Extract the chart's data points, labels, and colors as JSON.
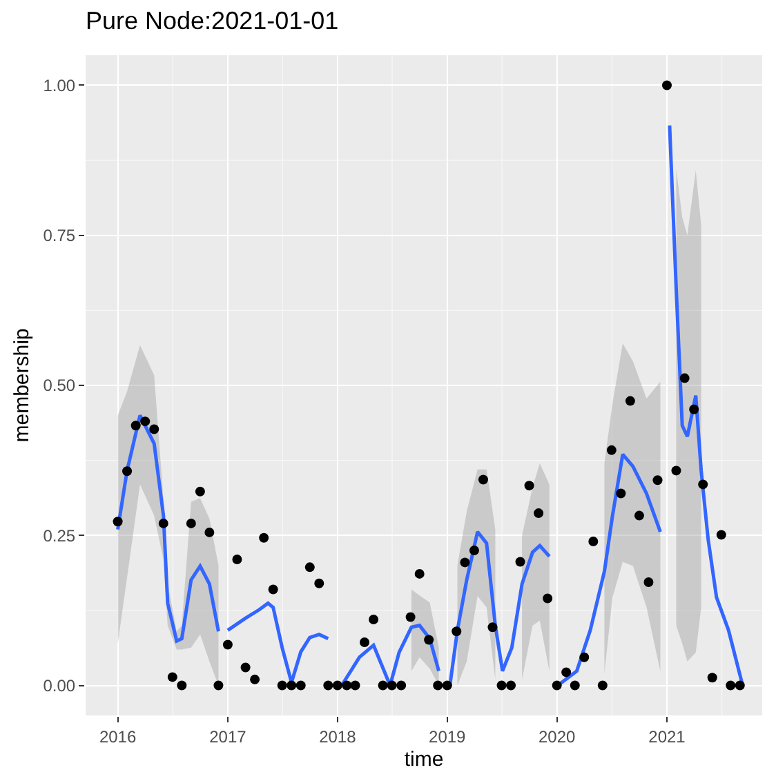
{
  "chart_data": {
    "type": "scatter",
    "title": "Pure Node:2021-01-01",
    "xlabel": "time",
    "ylabel": "membership",
    "xlim": [
      "2015-09-16",
      "2021-11-14"
    ],
    "ylim": [
      -0.05,
      1.05
    ],
    "xticks": [
      {
        "value": "2016-01-01",
        "label": "2016"
      },
      {
        "value": "2017-01-01",
        "label": "2017"
      },
      {
        "value": "2018-01-01",
        "label": "2018"
      },
      {
        "value": "2019-01-01",
        "label": "2019"
      },
      {
        "value": "2020-01-01",
        "label": "2020"
      },
      {
        "value": "2021-01-01",
        "label": "2021"
      }
    ],
    "yticks": [
      {
        "value": 0,
        "label": "0.00"
      },
      {
        "value": 0.25,
        "label": "0.25"
      },
      {
        "value": 0.5,
        "label": "0.50"
      },
      {
        "value": 0.75,
        "label": "0.75"
      },
      {
        "value": 1,
        "label": "1.00"
      }
    ],
    "grid": true,
    "series": [
      {
        "marker": "circle",
        "color": "#000000",
        "x": [
          "2016-01-01",
          "2016-02-01",
          "2016-03-01",
          "2016-04-01",
          "2016-05-01",
          "2016-06-01",
          "2016-07-01",
          "2016-08-01",
          "2016-09-01",
          "2016-10-01",
          "2016-11-01",
          "2016-12-01",
          "2017-01-01",
          "2017-02-01",
          "2017-03-01",
          "2017-04-01",
          "2017-05-01",
          "2017-06-01",
          "2017-07-01",
          "2017-08-01",
          "2017-09-01",
          "2017-10-01",
          "2017-11-01",
          "2017-12-01",
          "2018-01-01",
          "2018-02-01",
          "2018-03-01",
          "2018-04-01",
          "2018-05-01",
          "2018-06-01",
          "2018-07-01",
          "2018-08-01",
          "2018-09-01",
          "2018-10-01",
          "2018-11-01",
          "2018-12-01",
          "2019-01-01",
          "2019-02-01",
          "2019-03-01",
          "2019-04-01",
          "2019-05-01",
          "2019-06-01",
          "2019-07-01",
          "2019-08-01",
          "2019-09-01",
          "2019-10-01",
          "2019-11-01",
          "2019-12-01",
          "2020-01-01",
          "2020-02-01",
          "2020-03-01",
          "2020-04-01",
          "2020-05-01",
          "2020-06-01",
          "2020-07-01",
          "2020-08-01",
          "2020-09-01",
          "2020-10-01",
          "2020-11-01",
          "2020-12-01",
          "2021-01-01",
          "2021-02-01",
          "2021-03-01",
          "2021-04-01",
          "2021-05-01",
          "2021-06-01",
          "2021-07-01",
          "2021-08-01",
          "2021-09-01"
        ],
        "values": [
          0.273,
          0.357,
          0.433,
          0.44,
          0.427,
          0.27,
          0.014,
          0,
          0.27,
          0.323,
          0.255,
          0,
          0.068,
          0.21,
          0.03,
          0.01,
          0.246,
          0.16,
          0,
          0,
          0,
          0.197,
          0.17,
          0,
          0,
          0,
          0,
          0.072,
          0.11,
          0,
          0,
          0,
          0.114,
          0.186,
          0.076,
          0,
          0,
          0.09,
          0.205,
          0.225,
          0.343,
          0.097,
          0,
          0,
          0.206,
          0.333,
          0.287,
          0.145,
          0,
          0.022,
          0,
          0.047,
          0.24,
          0,
          0.392,
          0.32,
          0.474,
          0.283,
          0.172,
          0.342,
          1,
          0.358,
          0.512,
          0.46,
          0.335,
          0.013,
          0.251,
          0,
          0
        ]
      },
      {
        "type": "line",
        "color": "#3366ff",
        "x": [
          "2016-01-01",
          "2016-02-01",
          "2016-03-15",
          "2016-05-01",
          "2016-06-01",
          "2016-06-15",
          "2016-07-15",
          "2016-08-01",
          "2016-09-01",
          "2016-10-01",
          "2016-11-01",
          "2016-12-01"
        ],
        "values": [
          0.26,
          0.358,
          0.45,
          0.403,
          0.283,
          0.137,
          0.074,
          0.078,
          0.176,
          0.199,
          0.169,
          0.09
        ],
        "lower": [
          0.07,
          0.18,
          0.335,
          0.283,
          0.21,
          0.1,
          0.06,
          0.06,
          0.063,
          0.085,
          0.04,
          0
        ],
        "upper": [
          0.45,
          0.49,
          0.567,
          0.517,
          0.31,
          0.17,
          0.09,
          0.1,
          0.306,
          0.312,
          0.278,
          0.2
        ]
      },
      {
        "type": "line",
        "color": "#3366ff",
        "x": [
          "2017-01-01",
          "2017-03-01",
          "2017-04-15",
          "2017-05-15",
          "2017-06-01",
          "2017-07-01",
          "2017-08-01",
          "2017-09-01",
          "2017-10-01",
          "2017-11-01",
          "2017-12-01"
        ],
        "values": [
          0.092,
          0.112,
          0.126,
          0.137,
          0.13,
          0.063,
          0.005,
          0.056,
          0.08,
          0.085,
          0.078
        ]
      },
      {
        "type": "line",
        "color": "#3366ff",
        "x": [
          "2018-01-15",
          "2018-03-15",
          "2018-05-01",
          "2018-06-25",
          "2018-07-25",
          "2018-09-04",
          "2018-10-01",
          "2018-11-04",
          "2018-12-04"
        ],
        "values": [
          0,
          0.047,
          0.067,
          0,
          0.055,
          0.097,
          0.1,
          0.078,
          0.024
        ],
        "lower": [
          null,
          null,
          null,
          null,
          null,
          0.024,
          0.047,
          0.028,
          0
        ],
        "upper": [
          null,
          null,
          null,
          null,
          null,
          0.16,
          0.15,
          0.138,
          0.063
        ]
      },
      {
        "type": "line",
        "color": "#3366ff",
        "x": [
          "2019-01-10",
          "2019-02-04",
          "2019-03-07",
          "2019-04-12",
          "2019-05-12",
          "2019-06-10",
          "2019-07-04",
          "2019-08-04",
          "2019-09-07",
          "2019-10-12",
          "2019-11-05",
          "2019-12-07"
        ],
        "values": [
          0,
          0.092,
          0.176,
          0.256,
          0.237,
          0.1,
          0.024,
          0.063,
          0.169,
          0.222,
          0.233,
          0.215
        ],
        "lower": [
          null,
          0,
          0.04,
          0.149,
          0.13,
          0.01,
          null,
          null,
          0.01,
          0.1,
          0.108,
          0.024
        ],
        "upper": [
          null,
          0.2,
          0.29,
          0.36,
          0.36,
          0.26,
          null,
          null,
          0.25,
          0.33,
          0.37,
          0.335
        ]
      },
      {
        "type": "line",
        "color": "#3366ff",
        "x": [
          "2020-01-04",
          "2020-03-07",
          "2020-04-21",
          "2020-05-28",
          "2020-06-07",
          "2020-07-04",
          "2020-08-07",
          "2020-09-10",
          "2020-10-25",
          "2020-12-10"
        ],
        "values": [
          0,
          0.024,
          0.092,
          0.169,
          0.19,
          0.283,
          0.385,
          0.365,
          0.32,
          0.256
        ],
        "lower": [
          null,
          null,
          null,
          null,
          0.02,
          0.147,
          0.206,
          0.199,
          0.131,
          0.024
        ],
        "upper": [
          null,
          null,
          null,
          null,
          0.37,
          0.47,
          0.57,
          0.54,
          0.478,
          0.506
        ]
      },
      {
        "type": "line",
        "color": "#3366ff",
        "x": [
          "2021-01-10",
          "2021-02-01",
          "2021-02-21",
          "2021-03-10",
          "2021-04-07",
          "2021-04-25",
          "2021-05-18",
          "2021-06-15",
          "2021-07-25",
          "2021-09-10"
        ],
        "values": [
          0.933,
          0.66,
          0.433,
          0.415,
          0.483,
          0.358,
          0.244,
          0.147,
          0.092,
          0
        ],
        "lower": [
          null,
          0.1,
          0.07,
          0.04,
          0.055,
          0.13,
          null,
          null,
          null,
          null
        ],
        "upper": [
          null,
          0.86,
          0.78,
          0.75,
          0.858,
          0.767,
          null,
          null,
          null,
          null
        ]
      }
    ]
  }
}
